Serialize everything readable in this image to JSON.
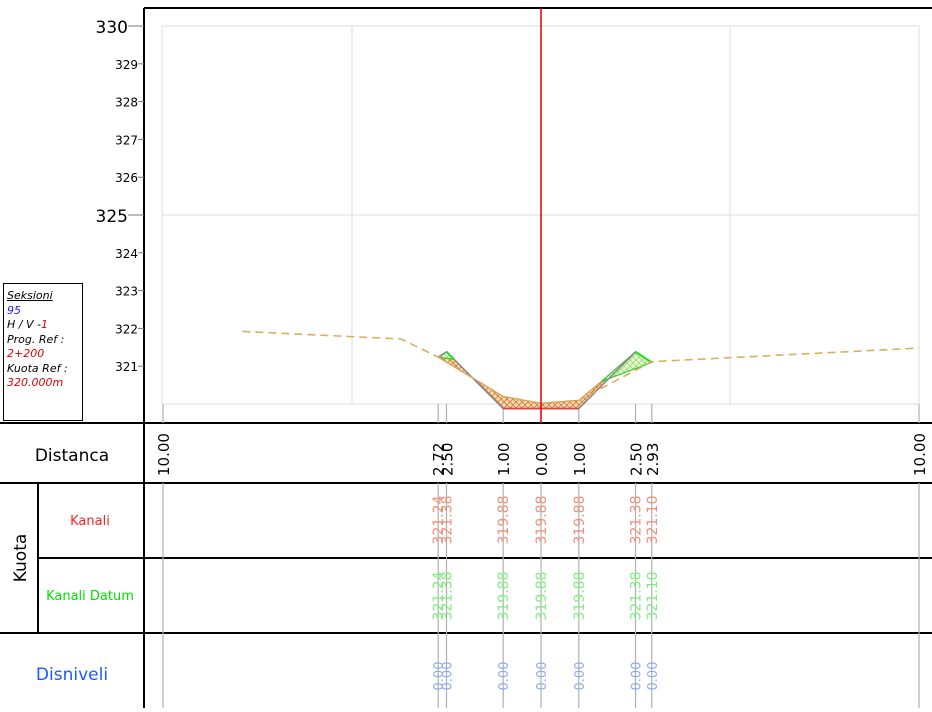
{
  "info": {
    "section_label": "Seksioni",
    "section_number": "95",
    "hv_label": "H / V -",
    "hv_value": "1",
    "prog_label": "Prog. Ref :",
    "prog_value": "2+200",
    "elev_label": "Kuota Ref :",
    "elev_value": "320.000m"
  },
  "rows": {
    "distance": "Distanca",
    "elev_group": "Kuota",
    "canal": "Kanali",
    "canal_datum": "Kanali Datum",
    "difference": "Disniveli"
  },
  "colors": {
    "axis_red": "#e00000",
    "canal_label": "#ff2020",
    "canal_values": "#f0907a",
    "datum_label": "#00dd00",
    "datum_values": "#80ee80",
    "difference_label": "#1a5aff",
    "difference_values": "#90a8ee",
    "ground_line": "#d8b060",
    "cut_fill": "#e08a40"
  },
  "chart_data": {
    "type": "cross-section",
    "y_ticks_major": [
      "330",
      "325"
    ],
    "y_ticks_minor": [
      "329",
      "328",
      "327",
      "326",
      "324",
      "323",
      "322",
      "321"
    ],
    "ylim": [
      320.0,
      330.5
    ],
    "xlim": [
      -10,
      10
    ],
    "ground_line": [
      {
        "x": -7.9,
        "y": 321.92
      },
      {
        "x": -3.7,
        "y": 321.72
      },
      {
        "x": -2.72,
        "y": 321.24
      },
      {
        "x": -1.0,
        "y": 320.2
      },
      {
        "x": 0.0,
        "y": 320.02
      },
      {
        "x": 1.0,
        "y": 320.1
      },
      {
        "x": 2.93,
        "y": 321.12
      },
      {
        "x": 10.0,
        "y": 321.48
      }
    ],
    "canal_profile": [
      {
        "x": -2.72,
        "y": 321.24
      },
      {
        "x": -2.5,
        "y": 321.38
      },
      {
        "x": -1.0,
        "y": 319.88
      },
      {
        "x": 0.0,
        "y": 319.88
      },
      {
        "x": 1.0,
        "y": 319.88
      },
      {
        "x": 2.5,
        "y": 321.38
      },
      {
        "x": 2.93,
        "y": 321.1
      }
    ],
    "stations": [
      {
        "x": -10.0,
        "label": "10.00",
        "canal": "",
        "datum": "",
        "diff": ""
      },
      {
        "x": -2.72,
        "label": "2.72",
        "canal": "321.24",
        "datum": "321.24",
        "diff": "0.00"
      },
      {
        "x": -2.5,
        "label": "2.50",
        "canal": "321.38",
        "datum": "321.38",
        "diff": "0.00"
      },
      {
        "x": -1.0,
        "label": "1.00",
        "canal": "319.88",
        "datum": "319.88",
        "diff": "0.00"
      },
      {
        "x": 0.0,
        "label": "0.00",
        "canal": "319.88",
        "datum": "319.88",
        "diff": "0.00"
      },
      {
        "x": 1.0,
        "label": "1.00",
        "canal": "319.88",
        "datum": "319.88",
        "diff": "0.00"
      },
      {
        "x": 2.5,
        "label": "2.50",
        "canal": "321.38",
        "datum": "321.38",
        "diff": "0.00"
      },
      {
        "x": 2.93,
        "label": "2.93",
        "canal": "321.10",
        "datum": "321.10",
        "diff": "0.00"
      },
      {
        "x": 10.0,
        "label": "10.00",
        "canal": "",
        "datum": "",
        "diff": ""
      }
    ]
  }
}
